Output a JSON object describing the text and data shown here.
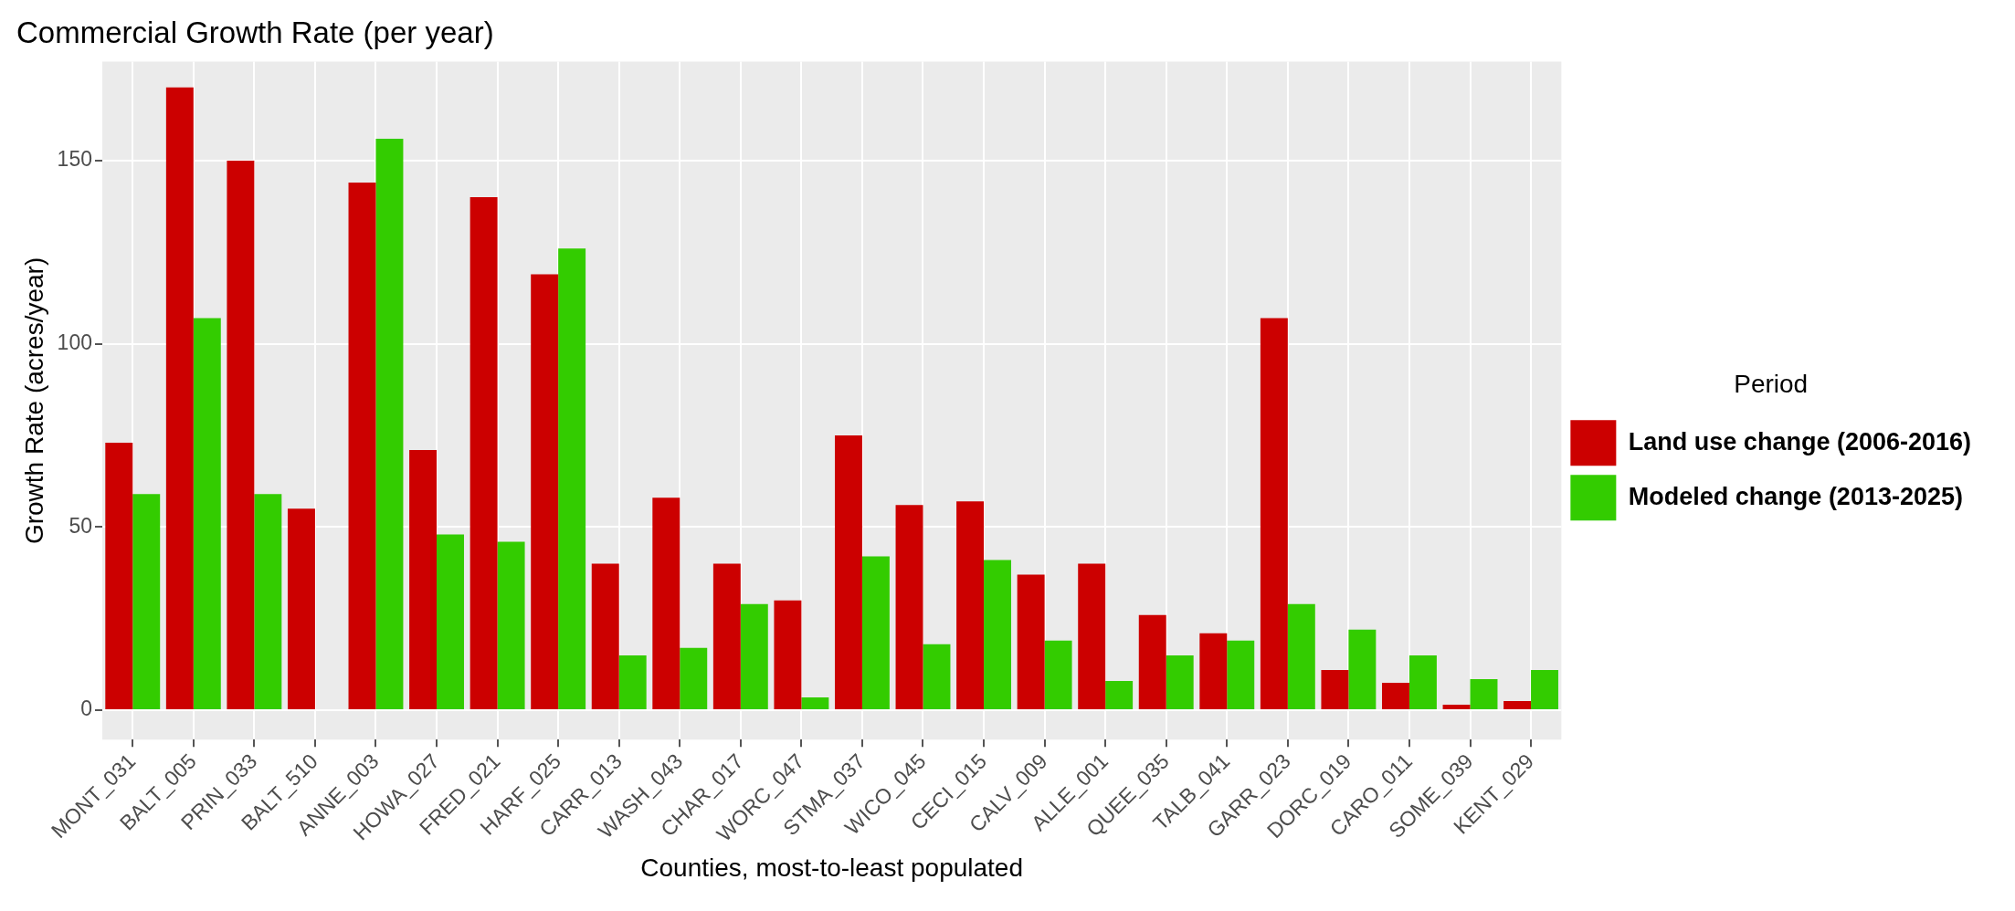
{
  "chart_data": {
    "type": "bar",
    "title": "Commercial Growth Rate (per year)",
    "xlabel": "Counties, most-to-least populated",
    "ylabel": "Growth Rate (acres/year)",
    "legend_title": "Period",
    "categories": [
      "MONT_031",
      "BALT_005",
      "PRIN_033",
      "BALT_510",
      "ANNE_003",
      "HOWA_027",
      "FRED_021",
      "HARF_025",
      "CARR_013",
      "WASH_043",
      "CHAR_017",
      "WORC_047",
      "STMA_037",
      "WICO_045",
      "CECI_015",
      "CALV_009",
      "ALLE_001",
      "QUEE_035",
      "TALB_041",
      "GARR_023",
      "DORC_019",
      "CARO_011",
      "SOME_039",
      "KENT_029"
    ],
    "series": [
      {
        "name": "Land use change (2006-2016)",
        "color": "#cc0000",
        "values": [
          73,
          170,
          150,
          55,
          144,
          71,
          140,
          119,
          40,
          58,
          40,
          30,
          75,
          56,
          57,
          37,
          40,
          26,
          21,
          107,
          11,
          7.5,
          1.5,
          2.5
        ]
      },
      {
        "name": "Modeled change (2013-2025)",
        "color": "#33cc00",
        "values": [
          59,
          107,
          59,
          null,
          156,
          48,
          46,
          126,
          15,
          17,
          29,
          3.5,
          42,
          18,
          41,
          19,
          8,
          15,
          19,
          29,
          22,
          15,
          8.5,
          11
        ]
      }
    ],
    "ylim": [
      -8,
      177
    ],
    "yticks": [
      0,
      50,
      100,
      150
    ],
    "grid": true,
    "legend": "right"
  }
}
